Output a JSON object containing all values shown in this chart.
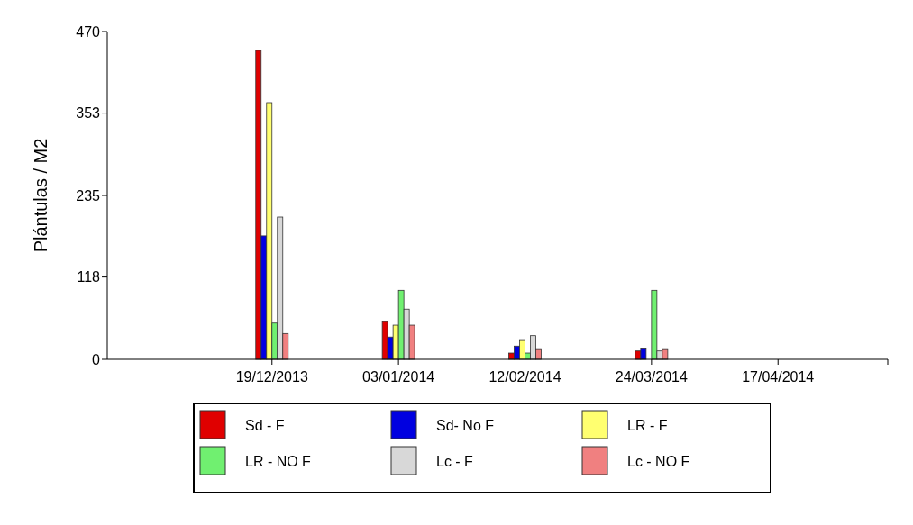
{
  "chart_data": {
    "type": "bar",
    "ylabel": "Plántulas / M2",
    "categories": [
      "19/12/2013",
      "03/01/2014",
      "12/02/2014",
      "24/03/2014",
      "17/04/2014"
    ],
    "series": [
      {
        "name": "Sd - F",
        "color": "#e00000",
        "values": [
          443,
          54,
          9,
          12,
          null
        ]
      },
      {
        "name": "Sd- No F",
        "color": "#0000e0",
        "values": [
          177,
          32,
          19,
          15,
          null
        ]
      },
      {
        "name": "LR - F",
        "color": "#ffff70",
        "values": [
          368,
          49,
          27,
          0,
          null
        ]
      },
      {
        "name": "LR - NO F",
        "color": "#70f070",
        "values": [
          52,
          99,
          9,
          99,
          null
        ]
      },
      {
        "name": "Lc - F",
        "color": "#d8d8d8",
        "values": [
          204,
          72,
          34,
          12,
          null
        ]
      },
      {
        "name": "Lc -  NO F",
        "color": "#f08080",
        "values": [
          37,
          49,
          14,
          14,
          null
        ]
      }
    ],
    "ylim": [
      0,
      470
    ],
    "yticks": [
      0,
      118,
      235,
      353,
      470
    ],
    "grid": false,
    "legend": "bottom"
  }
}
